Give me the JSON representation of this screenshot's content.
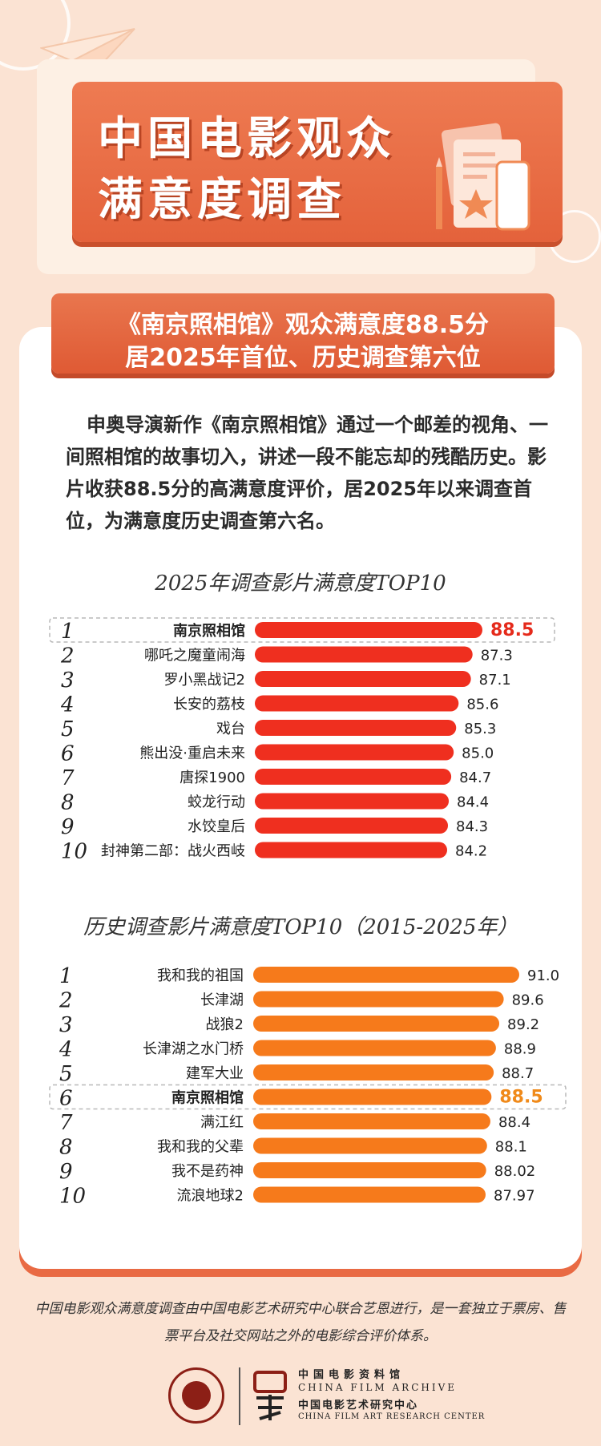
{
  "header": {
    "title_line1": "中国电影观众",
    "title_line2": "满意度调查"
  },
  "banner": {
    "line1": "《南京照相馆》观众满意度88.5分",
    "line2": "居2025年首位、历史调查第六位"
  },
  "intro": "申奥导演新作《南京照相馆》通过一个邮差的视角、一间照相馆的故事切入，讲述一段不能忘却的残酷历史。影片收获88.5分的高满意度评价，居2025年以来调查首位，为满意度历史调查第六名。",
  "chart_data": [
    {
      "type": "bar",
      "title": "2025年调查影片满意度TOP10",
      "ranks": [
        "1",
        "2",
        "3",
        "4",
        "5",
        "6",
        "7",
        "8",
        "9",
        "10"
      ],
      "categories": [
        "南京照相馆",
        "哪吒之魔童闹海",
        "罗小黑战记2",
        "长安的荔枝",
        "戏台",
        "熊出没·重启未来",
        "唐探1900",
        "蛟龙行动",
        "水饺皇后",
        "封神第二部：战火西岐"
      ],
      "values": [
        88.5,
        87.3,
        87.1,
        85.6,
        85.3,
        85.0,
        84.7,
        84.4,
        84.3,
        84.2
      ],
      "labels": [
        "88.5",
        "87.3",
        "87.1",
        "85.6",
        "85.3",
        "85.0",
        "84.7",
        "84.4",
        "84.3",
        "84.2"
      ],
      "highlight_index": 0,
      "color": "#ef2f1f",
      "highlight_label_color": "#e52a1b"
    },
    {
      "type": "bar",
      "title": "历史调查影片满意度TOP10（2015-2025年）",
      "ranks": [
        "1",
        "2",
        "3",
        "4",
        "5",
        "6",
        "7",
        "8",
        "9",
        "10"
      ],
      "categories": [
        "我和我的祖国",
        "长津湖",
        "战狼2",
        "长津湖之水门桥",
        "建军大业",
        "南京照相馆",
        "满江红",
        "我和我的父辈",
        "我不是药神",
        "流浪地球2"
      ],
      "values": [
        91.0,
        89.6,
        89.2,
        88.9,
        88.7,
        88.5,
        88.4,
        88.1,
        88.02,
        87.97
      ],
      "labels": [
        "91.0",
        "89.6",
        "89.2",
        "88.9",
        "88.7",
        "88.5",
        "88.4",
        "88.1",
        "88.02",
        "87.97"
      ],
      "highlight_index": 5,
      "color": "#f67a1b",
      "highlight_label_color": "#f08a1a"
    }
  ],
  "footer": {
    "note": "中国电影观众满意度调查由中国电影艺术研究中心联合艺恩进行，是一套独立于票房、售票平台及社交网站之外的电影综合评价体系。",
    "org_cn1": "中国电影资料馆",
    "org_en1": "CHINA FILM ARCHIVE",
    "org_cn2": "中国电影艺术研究中心",
    "org_en2": "CHINA FILM ART RESEARCH CENTER"
  },
  "colors": {
    "background": "#fbe3d3",
    "header_orange": "#e4623b",
    "panel_shadow": "#e96a43"
  }
}
